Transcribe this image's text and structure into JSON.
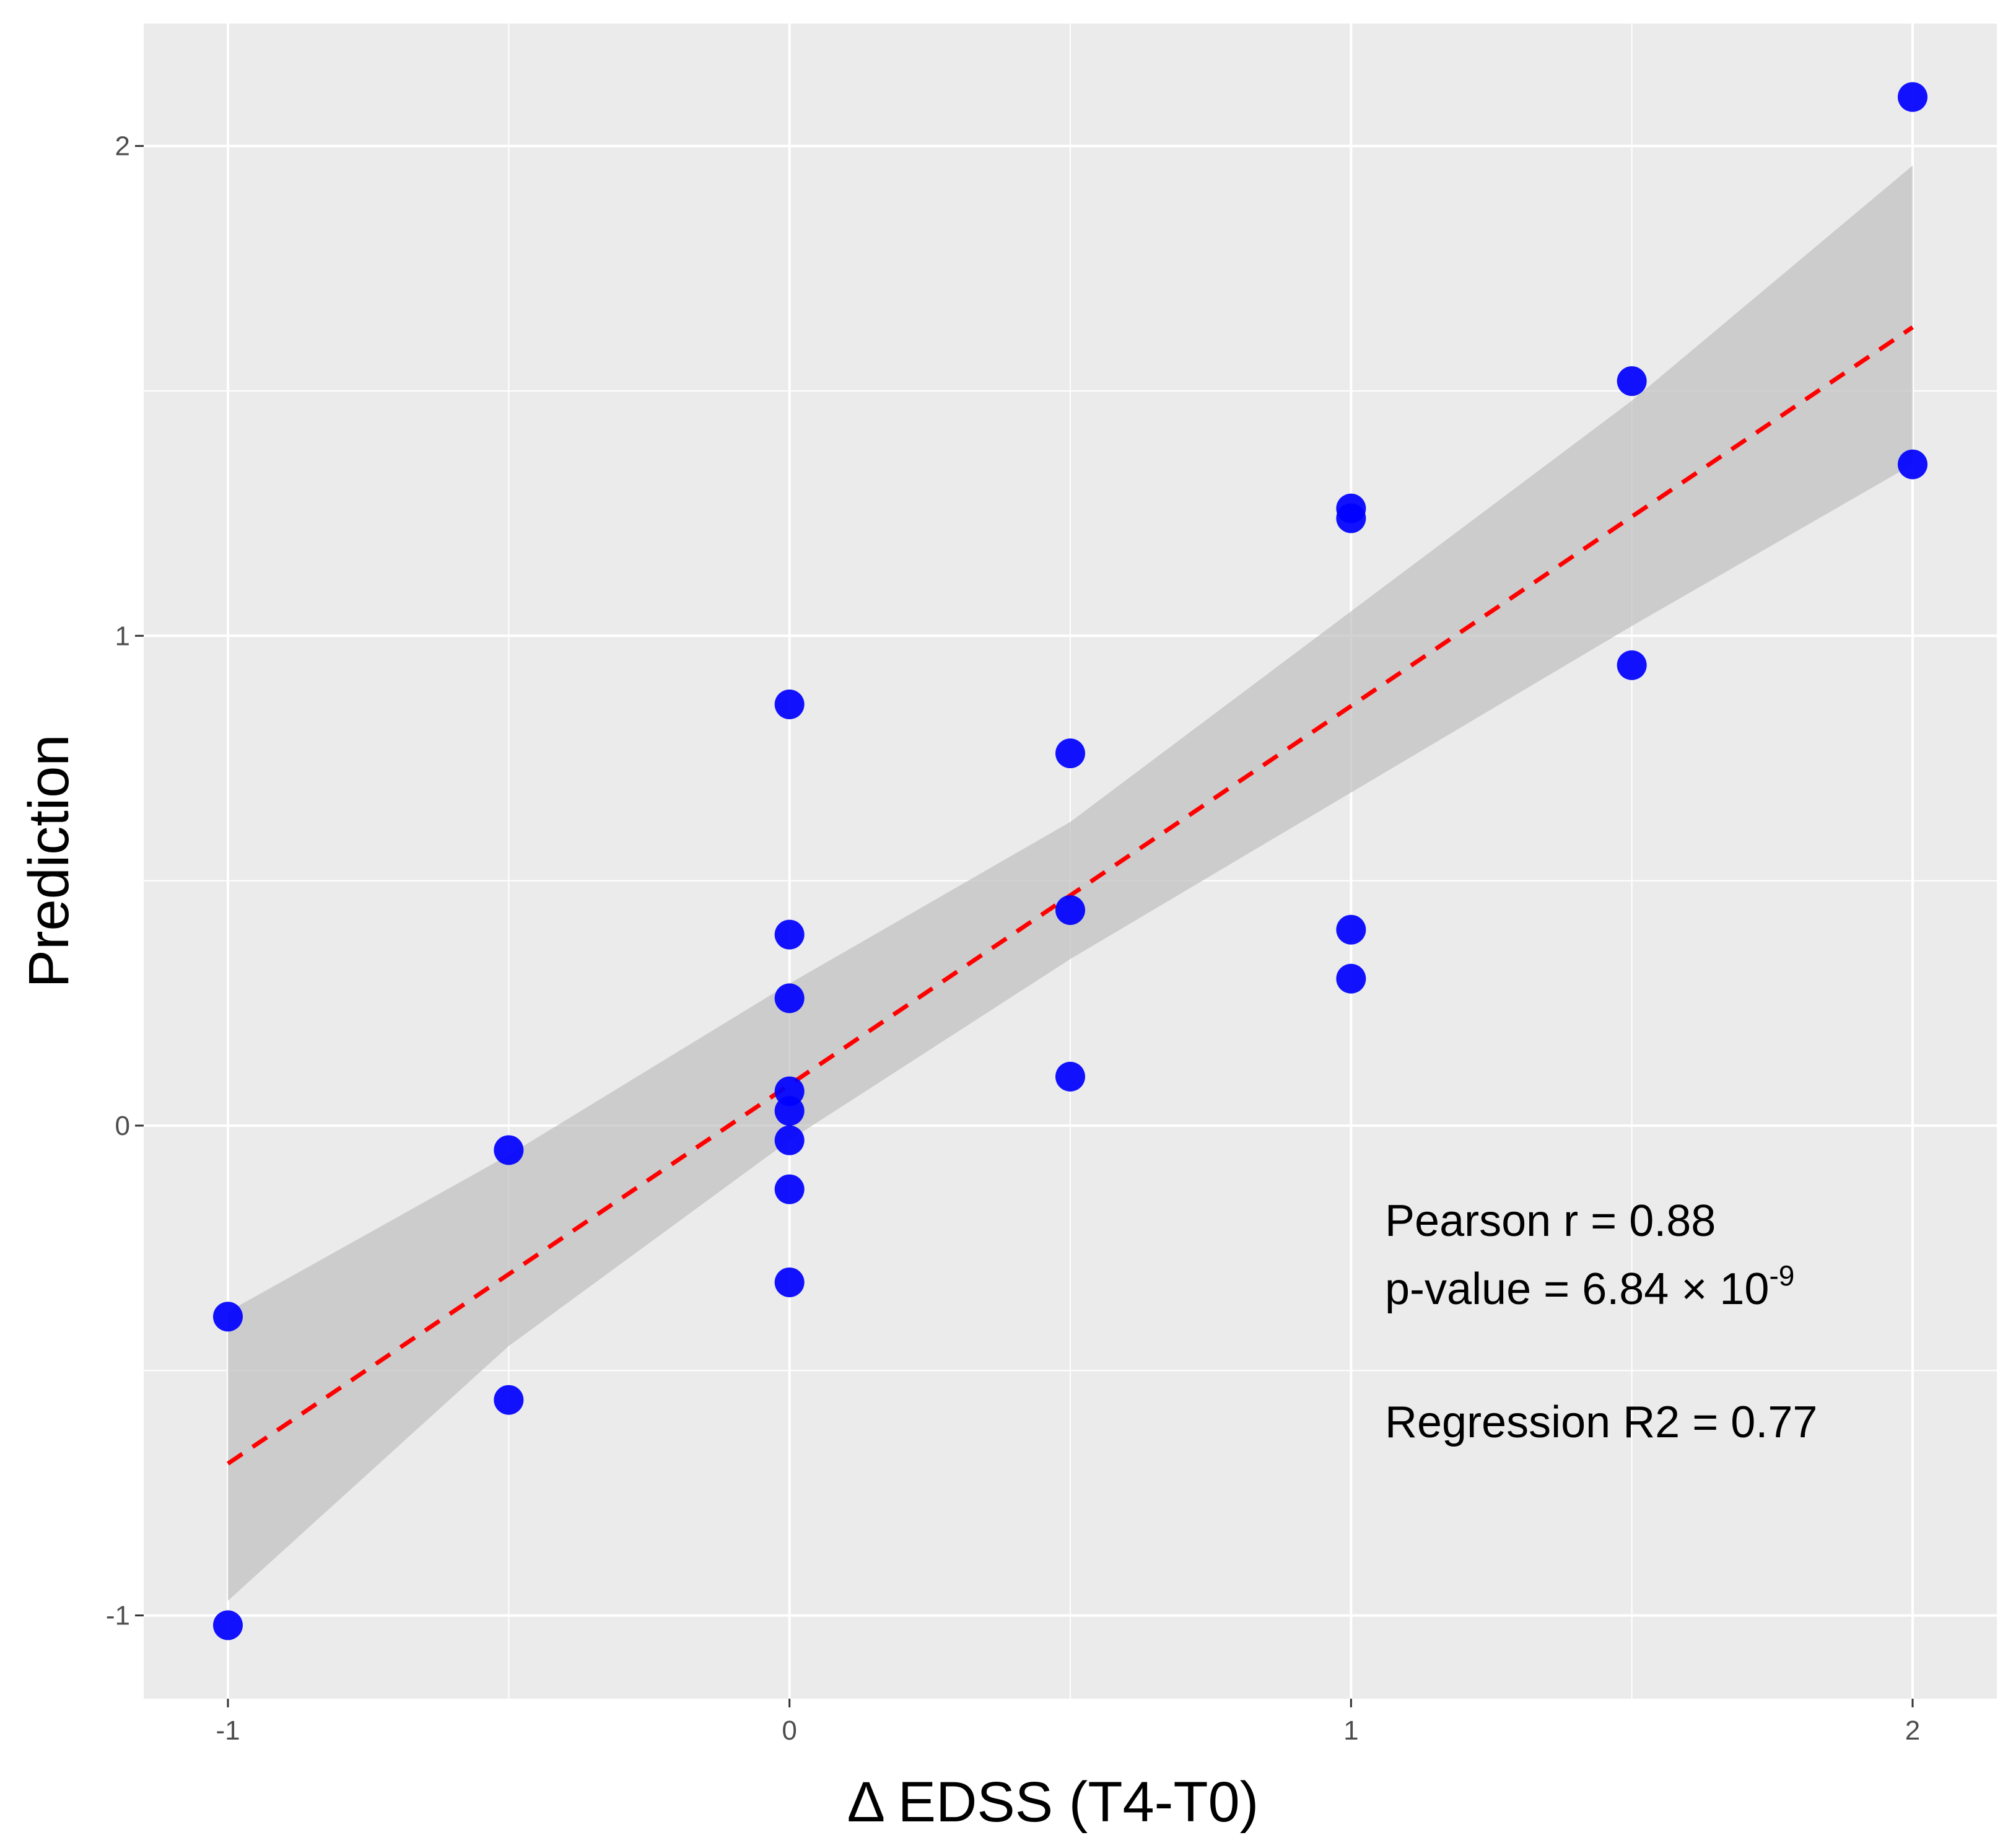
{
  "chart_data": {
    "type": "scatter",
    "title": "",
    "xlabel": "Δ EDSS (T4-T0)",
    "ylabel": "Prediction",
    "xlim": [
      -1.15,
      2.15
    ],
    "ylim": [
      -1.17,
      2.25
    ],
    "x_ticks": [
      -1,
      0,
      1,
      2
    ],
    "y_ticks": [
      -1,
      0,
      1,
      2
    ],
    "x_tick_labels": [
      "-1",
      "0",
      "1",
      "2"
    ],
    "y_tick_labels": [
      "-1",
      "0",
      "1",
      "2"
    ],
    "grid": true,
    "point_color": "#0000ff",
    "fit_line_color": "#ff0000",
    "band_color": "#bfbfbf",
    "panel_color": "#ebebeb",
    "gridline_color": "#ffffff",
    "points": [
      {
        "x": -1,
        "y": -0.39
      },
      {
        "x": -1,
        "y": -1.02
      },
      {
        "x": -0.5,
        "y": -0.05
      },
      {
        "x": -0.5,
        "y": -0.56
      },
      {
        "x": 0,
        "y": 0.86
      },
      {
        "x": 0,
        "y": 0.39
      },
      {
        "x": 0,
        "y": 0.26
      },
      {
        "x": 0,
        "y": 0.07
      },
      {
        "x": 0,
        "y": 0.03
      },
      {
        "x": 0,
        "y": -0.03
      },
      {
        "x": 0,
        "y": -0.13
      },
      {
        "x": 0,
        "y": -0.32
      },
      {
        "x": 0.5,
        "y": 0.76
      },
      {
        "x": 0.5,
        "y": 0.44
      },
      {
        "x": 0.5,
        "y": 0.1
      },
      {
        "x": 1,
        "y": 1.26
      },
      {
        "x": 1,
        "y": 1.24
      },
      {
        "x": 1,
        "y": 0.4
      },
      {
        "x": 1,
        "y": 0.3
      },
      {
        "x": 1.5,
        "y": 1.52
      },
      {
        "x": 1.5,
        "y": 0.94
      },
      {
        "x": 2,
        "y": 2.1
      },
      {
        "x": 2,
        "y": 1.35
      }
    ],
    "fit_line": {
      "x": [
        -1,
        2
      ],
      "y": [
        -0.69,
        1.63
      ]
    },
    "confidence_band": {
      "x": [
        -1,
        -0.5,
        0,
        0.5,
        1,
        1.5,
        2
      ],
      "lower": [
        -0.97,
        -0.45,
        -0.03,
        0.34,
        0.68,
        1.02,
        1.35
      ],
      "upper": [
        -0.38,
        -0.06,
        0.29,
        0.62,
        1.05,
        1.48,
        1.96
      ]
    },
    "annotations": {
      "pearson": "Pearson r = 0.88",
      "pvalue_prefix": "p-value = 6.84 × 10",
      "pvalue_exponent": "-9",
      "r2": "Regression R2 = 0.77"
    }
  }
}
